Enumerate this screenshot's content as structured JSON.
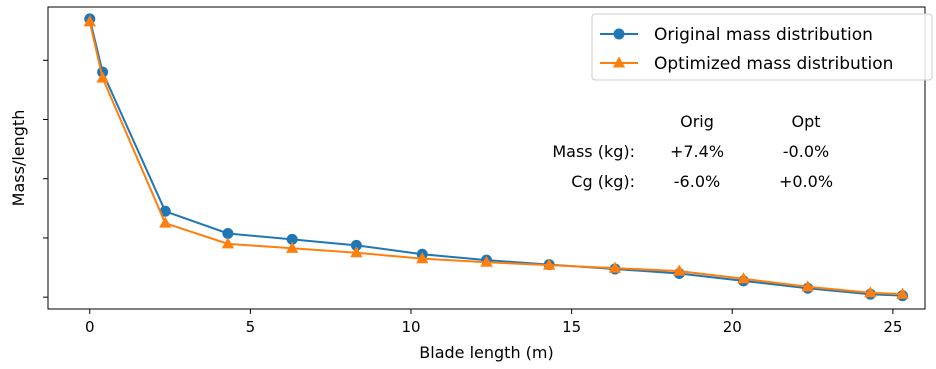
{
  "chart_data": {
    "type": "line",
    "xlabel": "Blade length (m)",
    "ylabel": "Mass/length",
    "xlim": [
      -1.3,
      26.0
    ],
    "ylim": [
      0.02,
      1.04
    ],
    "x_ticks": [
      0,
      5,
      10,
      15,
      20,
      25
    ],
    "y_ticks": [
      0.06,
      0.26,
      0.46,
      0.66,
      0.86
    ],
    "y_tick_labels_shown": false,
    "grid": false,
    "legend_position": "top-right",
    "series": [
      {
        "name": "Original mass distribution",
        "color": "#1f77b4",
        "marker": "circle",
        "x": [
          0,
          0.4,
          2.35,
          4.3,
          6.3,
          8.3,
          10.35,
          12.35,
          14.3,
          16.35,
          18.35,
          20.35,
          22.35,
          24.3,
          25.3
        ],
        "y": [
          1.0,
          0.82,
          0.35,
          0.275,
          0.255,
          0.235,
          0.205,
          0.185,
          0.17,
          0.155,
          0.14,
          0.115,
          0.09,
          0.07,
          0.065
        ]
      },
      {
        "name": "Optimized mass distribution",
        "color": "#ff7f0e",
        "marker": "triangle",
        "x": [
          0,
          0.4,
          2.35,
          4.3,
          6.3,
          8.3,
          10.35,
          12.35,
          14.3,
          16.35,
          18.35,
          20.35,
          22.35,
          24.3,
          25.3
        ],
        "y": [
          0.99,
          0.8,
          0.31,
          0.24,
          0.225,
          0.21,
          0.19,
          0.178,
          0.168,
          0.158,
          0.148,
          0.122,
          0.095,
          0.075,
          0.07
        ]
      }
    ],
    "annotation_table": {
      "header": [
        "Orig",
        "Opt"
      ],
      "rows": [
        {
          "label": "Mass (kg):",
          "values": [
            "+7.4%",
            "-0.0%"
          ]
        },
        {
          "label": "Cg (kg):",
          "values": [
            "-6.0%",
            "+0.0%"
          ]
        }
      ]
    }
  }
}
